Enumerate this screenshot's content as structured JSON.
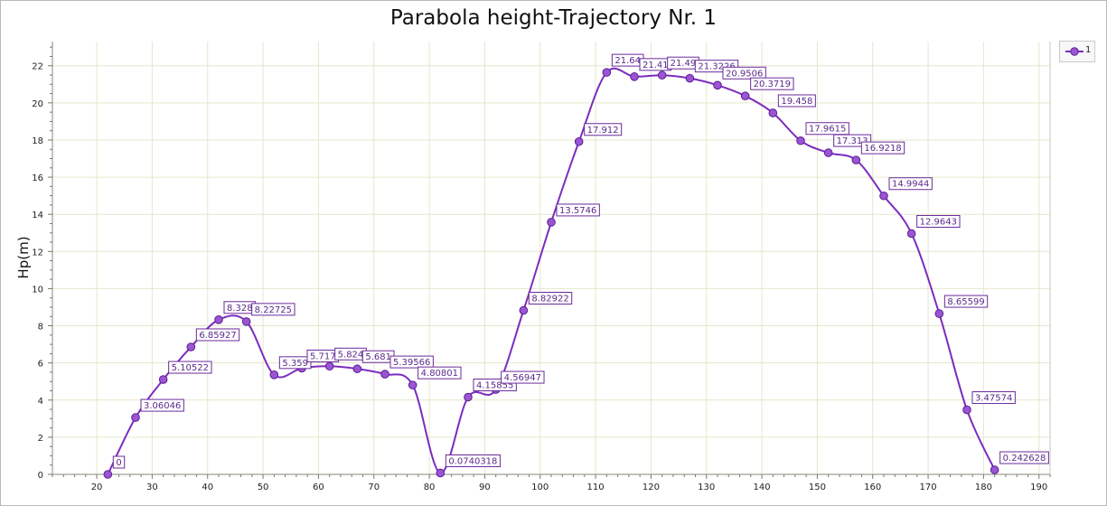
{
  "chart_data": {
    "type": "line",
    "title": "Parabola height-Trajectory Nr. 1",
    "xlabel": "",
    "ylabel": "Hp(m)",
    "xlim": [
      12,
      192
    ],
    "ylim": [
      0,
      23.3
    ],
    "x_ticks": [
      20,
      30,
      40,
      50,
      60,
      70,
      80,
      90,
      100,
      110,
      120,
      130,
      140,
      150,
      160,
      170,
      180,
      190
    ],
    "y_ticks": [
      0,
      2,
      4,
      6,
      8,
      10,
      12,
      14,
      16,
      18,
      20,
      22
    ],
    "grid": true,
    "legend_position": "top-right",
    "series": [
      {
        "name": "1",
        "color": "#7b2cbf",
        "x": [
          22,
          27,
          32,
          37,
          42,
          47,
          52,
          57,
          62,
          67,
          72,
          77,
          82,
          87,
          92,
          97,
          102,
          107,
          112,
          117,
          122,
          127,
          132,
          137,
          142,
          147,
          152,
          157,
          162,
          167,
          172,
          177,
          182
        ],
        "y": [
          0,
          3.06046,
          5.10522,
          6.85927,
          8.328,
          8.22725,
          5.359,
          5.717,
          5.824,
          5.681,
          5.39566,
          4.80801,
          0.0740318,
          4.15855,
          4.56947,
          8.82922,
          13.5746,
          17.912,
          21.64,
          21.41,
          21.49,
          21.3226,
          20.9506,
          20.3719,
          19.458,
          17.9615,
          17.313,
          16.9218,
          14.9944,
          12.9643,
          8.65599,
          3.47574,
          0.242628
        ],
        "labels": [
          "0",
          "3.06046",
          "5.10522",
          "6.85927",
          "8.328",
          "8.22725",
          "5.359",
          "5.717",
          "5.824",
          "5.681",
          "5.39566",
          "4.80801",
          "0.0740318",
          "4.15855",
          "4.56947",
          "8.82922",
          "13.5746",
          "17.912",
          "21.64",
          "21.41",
          "21.49",
          "21.3226",
          "20.9506",
          "20.3719",
          "19.458",
          "17.9615",
          "17.313",
          "16.9218",
          "14.9944",
          "12.9643",
          "8.65599",
          "3.47574",
          "0.242628"
        ]
      }
    ]
  }
}
